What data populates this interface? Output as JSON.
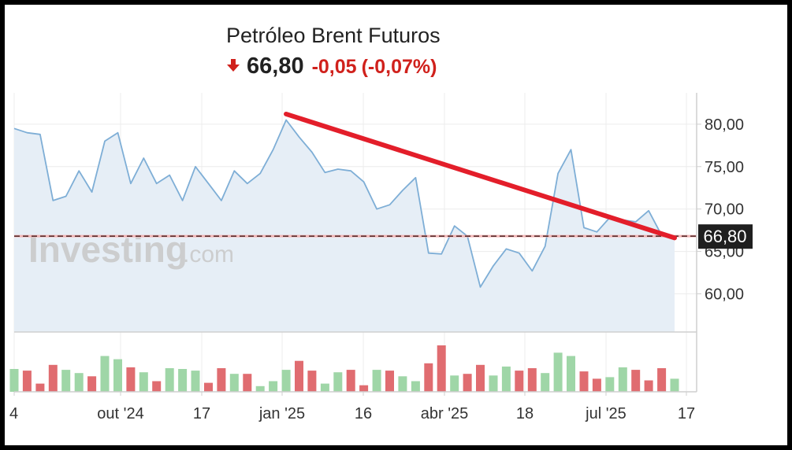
{
  "header": {
    "title": "Petróleo Brent Futuros",
    "direction_icon": "down-arrow-icon",
    "price": "66,80",
    "change": "-0,05",
    "change_pct": "(-0,07%)",
    "up_color": "#9fd6a7",
    "down_color": "#e06c70",
    "negative_color": "#d0211c"
  },
  "watermark": {
    "brand": "Investing",
    "suffix": ".com"
  },
  "chart_data": {
    "type": "area",
    "title": "Petróleo Brent Futuros",
    "ylim": [
      55.5,
      83.7
    ],
    "y_ticks": [
      "80,00",
      "75,00",
      "70,00",
      "65,00",
      "60,00"
    ],
    "y_tick_values": [
      80,
      75,
      70,
      65,
      60
    ],
    "x_ticks": [
      "4",
      "out '24",
      "17",
      "jan '25",
      "16",
      "abr '25",
      "18",
      "jul '25",
      "17"
    ],
    "last_value_label": "66,80",
    "last_value": 66.8,
    "series": [
      {
        "values": [
          79.5,
          79.0,
          78.8,
          71.0,
          71.5,
          74.5,
          72.0,
          78.0,
          79.0,
          73.0,
          76.0,
          73.0,
          74.0,
          71.0,
          75.0,
          73.0,
          71.0,
          74.5,
          73.0,
          74.2,
          77.0,
          80.5,
          78.5,
          76.7,
          74.3,
          74.7,
          74.5,
          73.2,
          70.0,
          70.5,
          72.2,
          73.7,
          64.8,
          64.7,
          68.0,
          66.8,
          60.8,
          63.3,
          65.3,
          64.8,
          62.7,
          65.6,
          74.2,
          77.0,
          67.8,
          67.3,
          69.0,
          68.7,
          68.5,
          69.8,
          66.9,
          66.8
        ]
      }
    ],
    "volume": {
      "values": [
        28,
        26,
        10,
        33,
        27,
        23,
        19,
        44,
        40,
        30,
        24,
        13,
        29,
        28,
        26,
        11,
        29,
        22,
        22,
        7,
        13,
        27,
        38,
        26,
        10,
        24,
        27,
        8,
        27,
        26,
        19,
        13,
        35,
        57,
        20,
        22,
        33,
        20,
        31,
        26,
        29,
        23,
        48,
        44,
        25,
        16,
        18,
        30,
        27,
        14,
        29,
        16
      ],
      "direction": [
        "u",
        "d",
        "d",
        "d",
        "u",
        "u",
        "d",
        "u",
        "u",
        "d",
        "u",
        "d",
        "u",
        "u",
        "u",
        "d",
        "d",
        "u",
        "d",
        "u",
        "u",
        "u",
        "d",
        "d",
        "u",
        "u",
        "d",
        "d",
        "u",
        "d",
        "u",
        "u",
        "d",
        "d",
        "u",
        "d",
        "d",
        "u",
        "u",
        "d",
        "d",
        "u",
        "u",
        "u",
        "d",
        "d",
        "u",
        "u",
        "d",
        "d",
        "d",
        "u"
      ]
    },
    "trendline": {
      "from": {
        "index": 21,
        "value": 81.2
      },
      "to": {
        "index": 51,
        "value": 66.6
      },
      "color": "#e31e2a"
    },
    "reference_line": {
      "value": 66.8,
      "style": "dashed"
    },
    "line_color": "#7eaed6",
    "fill_color": "#e6eef6",
    "grid": true,
    "legend": "none"
  }
}
